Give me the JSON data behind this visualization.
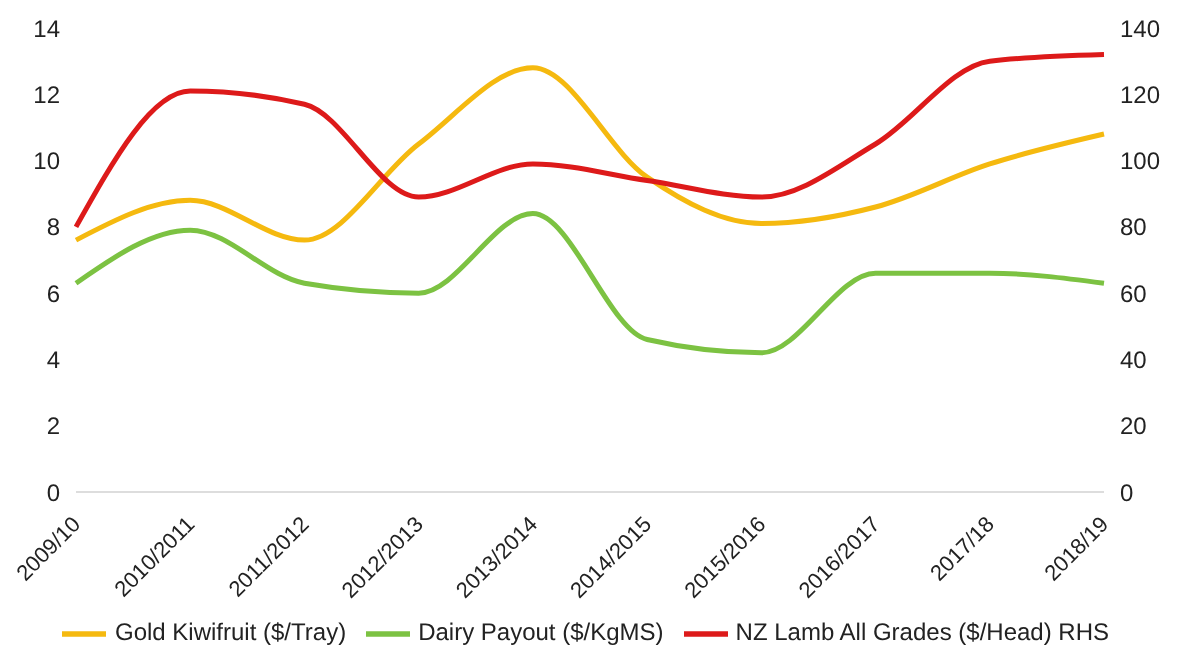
{
  "chart_data": {
    "type": "line",
    "categories": [
      "2009/10",
      "2010/2011",
      "2011/2012",
      "2012/2013",
      "2013/2014",
      "2014/2015",
      "2015/2016",
      "2016/2017",
      "2017/18",
      "2018/19"
    ],
    "series": [
      {
        "name": "Gold Kiwifruit ($/Tray)",
        "color": "#f5b90f",
        "values": [
          7.6,
          8.8,
          7.6,
          10.5,
          12.8,
          9.5,
          8.1,
          8.6,
          9.9,
          10.8
        ]
      },
      {
        "name": "Dairy Payout ($/KgMS)",
        "color": "#7cc242",
        "values": [
          6.3,
          7.9,
          6.3,
          6.0,
          8.4,
          4.6,
          4.2,
          6.6,
          6.6,
          6.3
        ]
      },
      {
        "name": "NZ Lamb All Grades ($/Head) RHS",
        "color": "#dd1a1a",
        "axis": "y2",
        "values": [
          80,
          121,
          117,
          89,
          99,
          94,
          89,
          105,
          130,
          132
        ]
      }
    ],
    "ylim": [
      0,
      14
    ],
    "yticks": [
      0,
      2,
      4,
      6,
      8,
      10,
      12,
      14
    ],
    "y2lim": [
      0,
      140
    ],
    "y2ticks": [
      0,
      20,
      40,
      60,
      80,
      100,
      120,
      140
    ],
    "legend": "bottom",
    "marker": "none",
    "line_style": "solid"
  }
}
